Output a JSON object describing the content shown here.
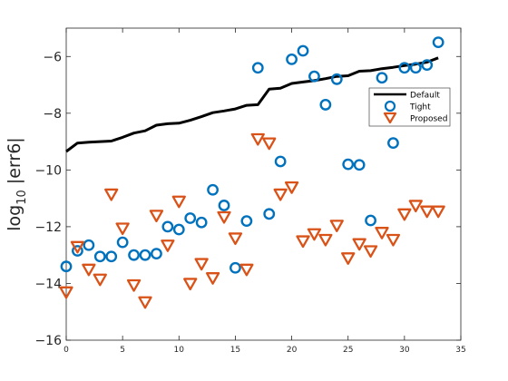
{
  "chart_data": {
    "type": "scatter",
    "title": "",
    "xlabel": "",
    "ylabel": "log",
    "ylabel_sub": "10",
    "ylabel_rest": " |err6|",
    "xlim": [
      0,
      35
    ],
    "ylim": [
      -16,
      -5
    ],
    "xticks": [
      0,
      5,
      10,
      15,
      20,
      25,
      30,
      35
    ],
    "yticks": [
      -16,
      -14,
      -12,
      -10,
      -8,
      -6
    ],
    "yticklabels": [
      "−16",
      "−14",
      "−12",
      "−10",
      "−8",
      "−6"
    ],
    "grid": false,
    "legend_position": "upper-right (inside, near y=-8)",
    "series": [
      {
        "name": "Default",
        "style": "line",
        "color": "#000000",
        "x": [
          0,
          1,
          2,
          3,
          4,
          5,
          6,
          7,
          8,
          9,
          10,
          11,
          12,
          13,
          14,
          15,
          16,
          17,
          18,
          19,
          20,
          21,
          22,
          23,
          24,
          25,
          26,
          27,
          28,
          29,
          30,
          31,
          32,
          33
        ],
        "y": [
          -9.35,
          -9.05,
          -9.02,
          -9.0,
          -8.98,
          -8.85,
          -8.7,
          -8.62,
          -8.42,
          -8.37,
          -8.35,
          -8.25,
          -8.12,
          -7.98,
          -7.92,
          -7.85,
          -7.72,
          -7.7,
          -7.15,
          -7.12,
          -6.95,
          -6.9,
          -6.85,
          -6.78,
          -6.7,
          -6.68,
          -6.52,
          -6.5,
          -6.43,
          -6.38,
          -6.32,
          -6.27,
          -6.2,
          -6.05
        ]
      },
      {
        "name": "Tight",
        "style": "circle",
        "color": "#0072BD",
        "x": [
          0,
          1,
          2,
          3,
          4,
          5,
          6,
          7,
          8,
          9,
          10,
          11,
          12,
          13,
          14,
          15,
          16,
          17,
          18,
          19,
          20,
          21,
          22,
          23,
          24,
          25,
          26,
          27,
          28,
          29,
          30,
          31,
          32,
          33
        ],
        "y": [
          -13.4,
          -12.85,
          -12.65,
          -13.05,
          -13.05,
          -12.55,
          -13.0,
          -13.0,
          -12.95,
          -12.0,
          -12.1,
          -11.7,
          -11.85,
          -10.7,
          -11.25,
          -13.45,
          -11.8,
          -6.4,
          -11.55,
          -9.7,
          -6.1,
          -5.8,
          -6.7,
          -7.7,
          -6.8,
          -9.8,
          -9.82,
          -11.78,
          -6.75,
          -9.05,
          -6.4,
          -6.4,
          -6.3,
          -5.5
        ]
      },
      {
        "name": "Proposed",
        "style": "triangle-down",
        "color": "#D95319",
        "x": [
          0,
          1,
          2,
          3,
          4,
          5,
          6,
          7,
          8,
          9,
          10,
          11,
          12,
          13,
          14,
          15,
          16,
          17,
          18,
          19,
          20,
          21,
          22,
          23,
          24,
          25,
          26,
          27,
          28,
          29,
          30,
          31,
          32,
          33
        ],
        "y": [
          -14.3,
          -12.7,
          -13.5,
          -13.85,
          -10.85,
          -12.05,
          -14.05,
          -14.65,
          -11.6,
          -12.65,
          -11.1,
          -14.0,
          -13.3,
          -13.8,
          -11.65,
          -12.4,
          -13.5,
          -8.9,
          -9.05,
          -10.85,
          -10.6,
          -12.5,
          -12.25,
          -12.45,
          -11.95,
          -13.1,
          -12.6,
          -12.85,
          -12.2,
          -12.45,
          -11.55,
          -11.25,
          -11.45,
          -11.45
        ]
      }
    ]
  }
}
